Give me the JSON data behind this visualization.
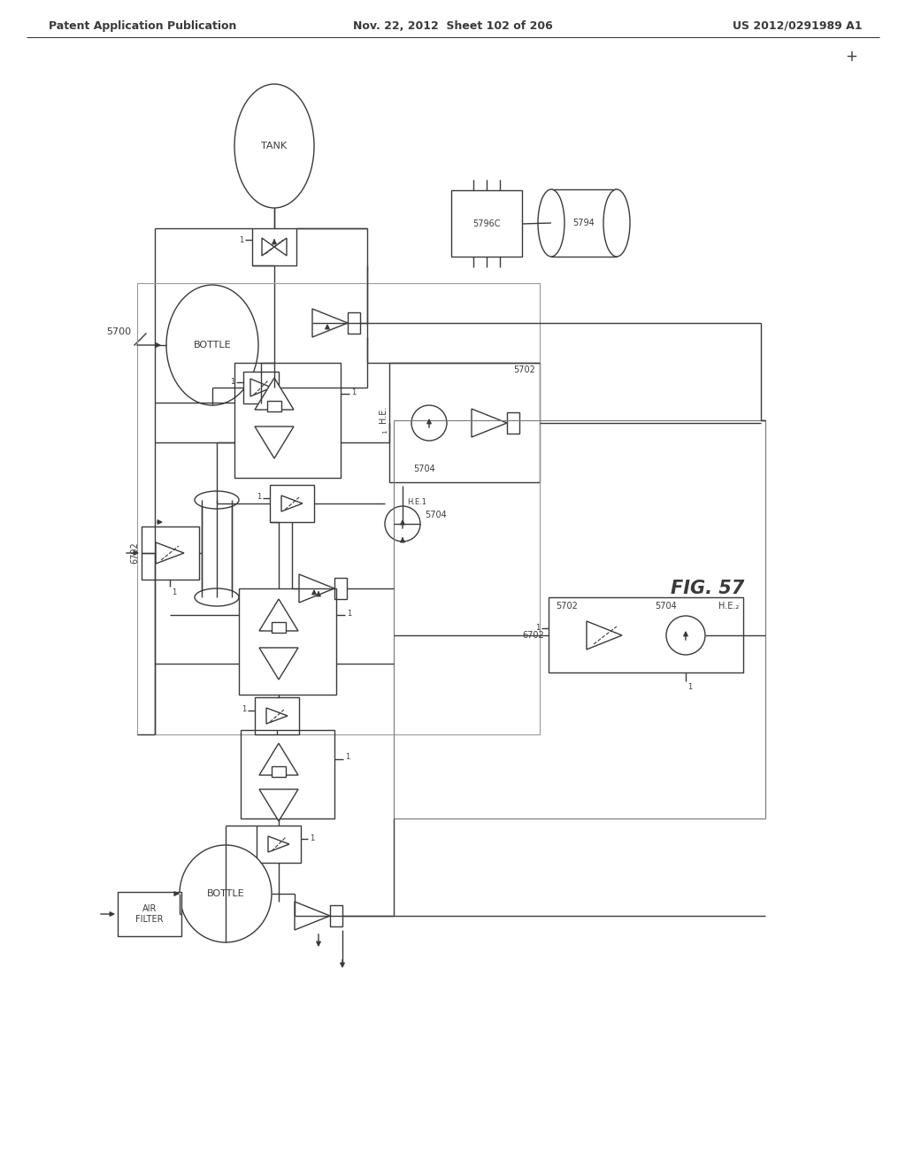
{
  "title_left": "Patent Application Publication",
  "title_center": "Nov. 22, 2012  Sheet 102 of 206",
  "title_right": "US 2012/0291989 A1",
  "fig_label": "FIG. 57",
  "label_5700": "5700",
  "label_5702_upper": "5702",
  "label_5702_left": "5702",
  "label_5702_right": "5702",
  "label_5704_upper": "5704",
  "label_5704_right": "5704",
  "label_5794": "5794",
  "label_5796": "5796C",
  "label_6702_left": "6702",
  "label_6702_right": "6702",
  "label_HE1": "H.E.",
  "label_HE1_sub": "1",
  "label_HE2": "H.E.",
  "label_HE2_sub": "2",
  "label_TANK": "TANK",
  "label_BOTTLE1": "BOTTLE",
  "label_BOTTLE2": "BOTTLE",
  "label_AIR_FILTER": "AIR\nFILTER",
  "bg_color": "#ffffff",
  "line_color": "#3a3a3a",
  "line_width": 1.0,
  "font_size_header": 9,
  "font_size_label": 7,
  "font_size_fig": 15
}
